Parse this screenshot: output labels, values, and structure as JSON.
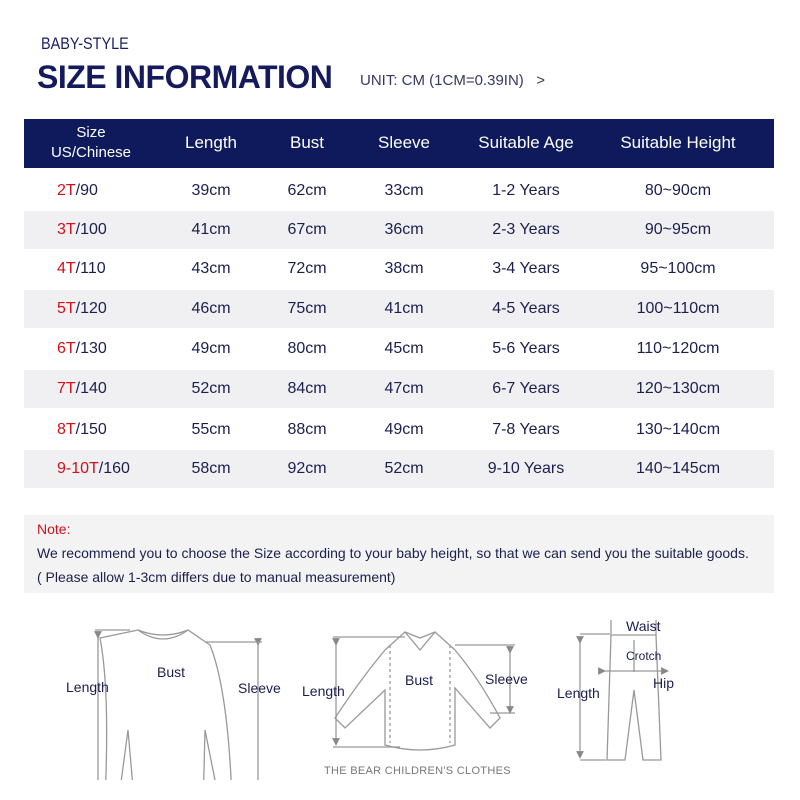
{
  "brand": "BABY-STYLE",
  "title": "SIZE INFORMATION",
  "unit": "UNIT: CM (1CM=0.39IN)   >",
  "colors": {
    "header_bg": "#0e1a5c",
    "accent_red": "#d0101a",
    "row_alt": "#f0f0f2"
  },
  "table": {
    "headers": {
      "size_line1": "Size",
      "size_line2": "US/Chinese",
      "length": "Length",
      "bust": "Bust",
      "sleeve": "Sleeve",
      "age": "Suitable Age",
      "height": "Suitable Height"
    },
    "rows": [
      {
        "us": "2T",
        "cn": "/90",
        "length": "39cm",
        "bust": "62cm",
        "sleeve": "33cm",
        "age": "1-2 Years",
        "height": "80~90cm"
      },
      {
        "us": "3T",
        "cn": "/100",
        "length": "41cm",
        "bust": "67cm",
        "sleeve": "36cm",
        "age": "2-3 Years",
        "height": "90~95cm"
      },
      {
        "us": "4T",
        "cn": "/110",
        "length": "43cm",
        "bust": "72cm",
        "sleeve": "38cm",
        "age": "3-4 Years",
        "height": "95~100cm"
      },
      {
        "us": "5T",
        "cn": "/120",
        "length": "46cm",
        "bust": "75cm",
        "sleeve": "41cm",
        "age": "4-5 Years",
        "height": "100~110cm"
      },
      {
        "us": "6T",
        "cn": "/130",
        "length": "49cm",
        "bust": "80cm",
        "sleeve": "45cm",
        "age": "5-6 Years",
        "height": "110~120cm"
      },
      {
        "us": "7T",
        "cn": "/140",
        "length": "52cm",
        "bust": "84cm",
        "sleeve": "47cm",
        "age": "6-7 Years",
        "height": "120~130cm"
      },
      {
        "us": "8T",
        "cn": "/150",
        "length": "55cm",
        "bust": "88cm",
        "sleeve": "49cm",
        "age": "7-8 Years",
        "height": "130~140cm"
      },
      {
        "us": "9-10T",
        "cn": "/160",
        "length": "58cm",
        "bust": "92cm",
        "sleeve": "52cm",
        "age": "9-10 Years",
        "height": "140~145cm"
      }
    ]
  },
  "note": {
    "label": "Note:",
    "line1": "We recommend you to choose the Size according to your baby height, so that we can send you the suitable goods.",
    "line2": "( Please allow 1-3cm differs due to manual measurement)"
  },
  "diagrams": {
    "sweater": {
      "length": "Length",
      "bust": "Bust",
      "sleeve": "Sleeve"
    },
    "shirt": {
      "length": "Length",
      "bust": "Bust",
      "sleeve": "Sleeve"
    },
    "pants": {
      "waist": "Waist",
      "crotch": "Crotch",
      "hip": "Hip",
      "length": "Length"
    }
  },
  "footer": "THE BEAR CHILDREN'S CLOTHES"
}
